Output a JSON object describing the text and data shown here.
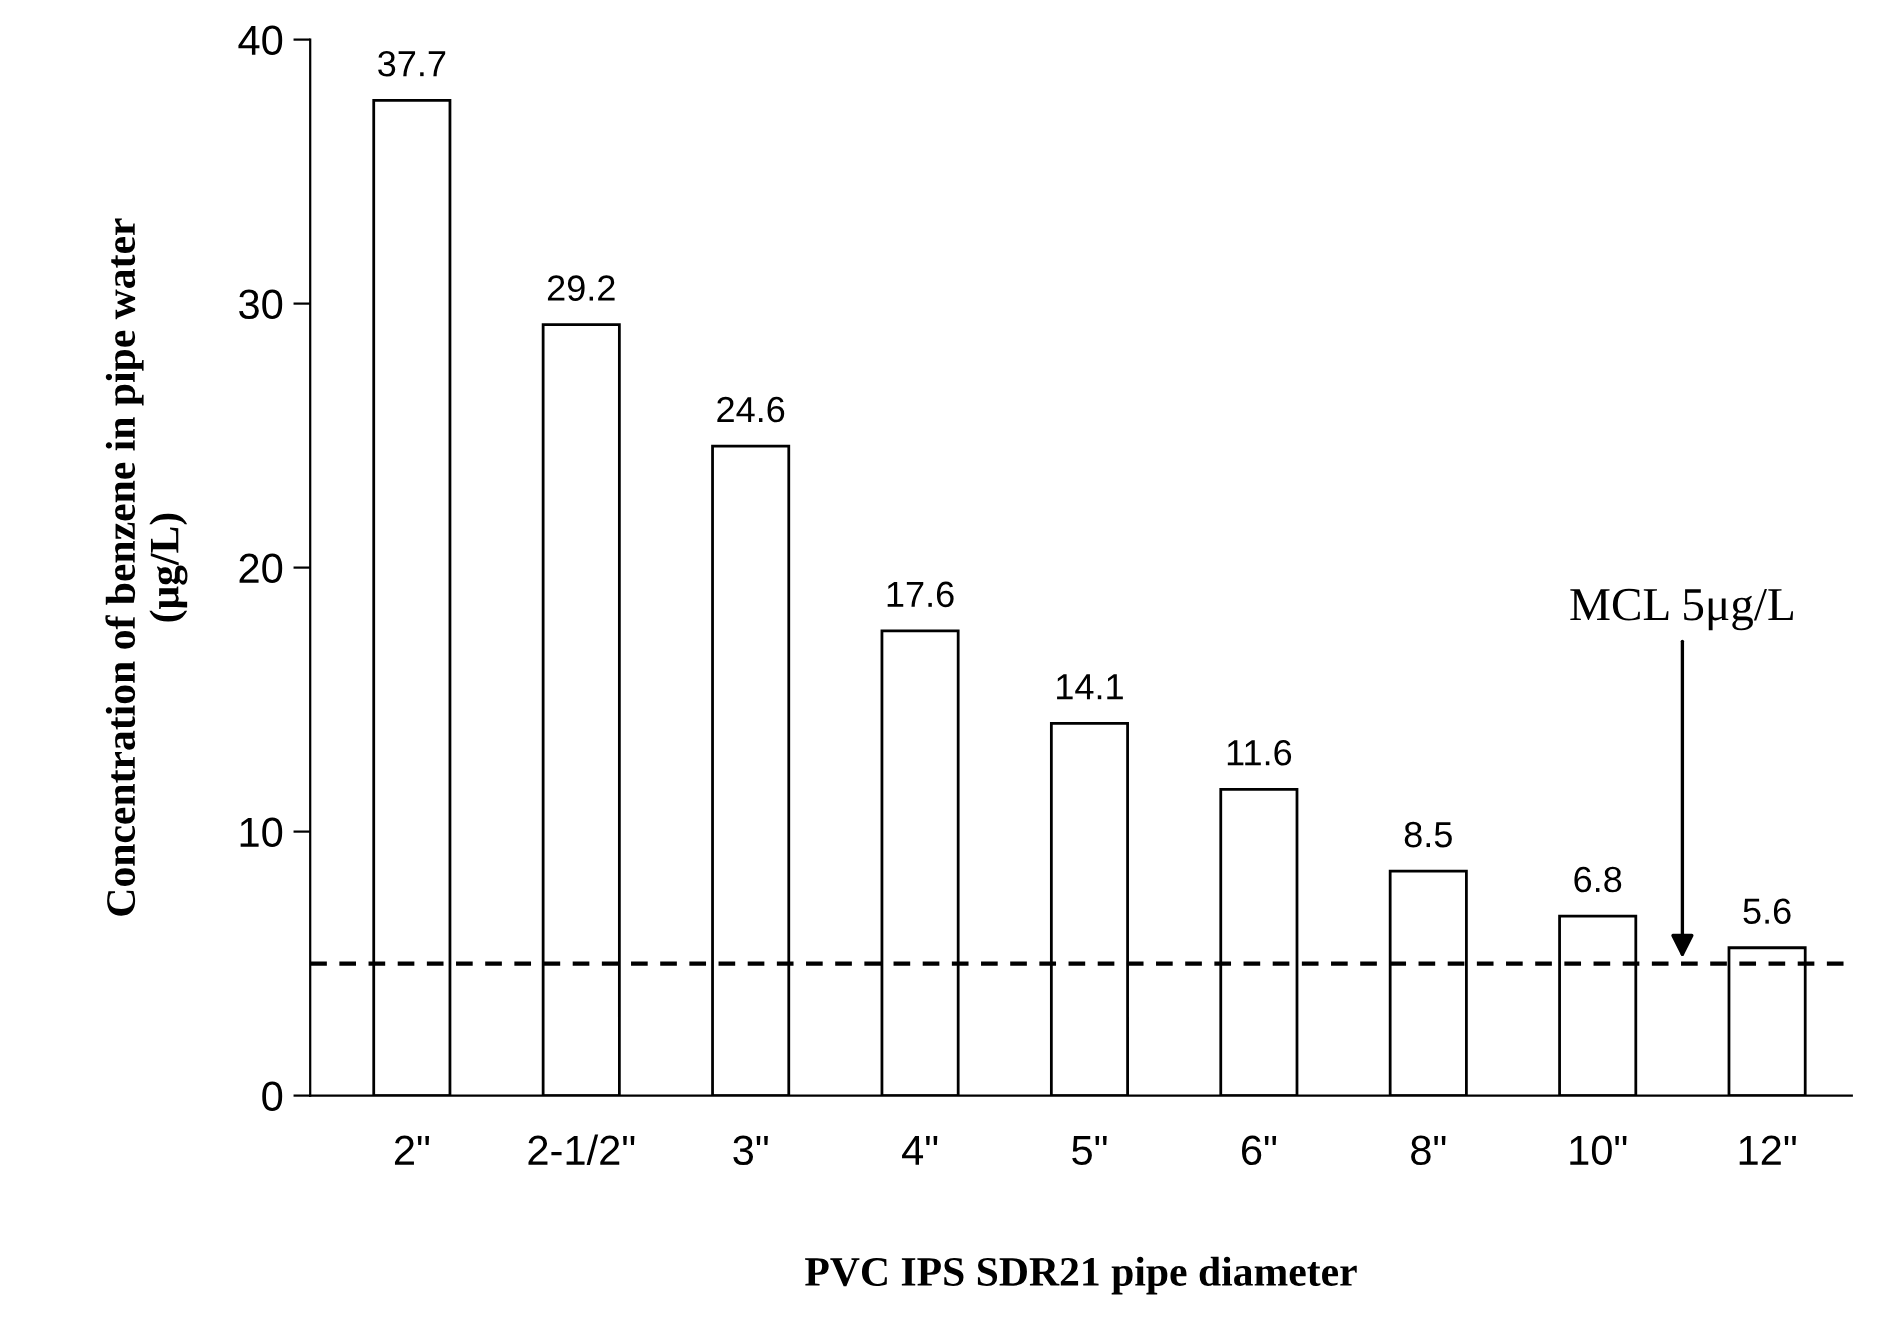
{
  "chart_data": {
    "type": "bar",
    "xlabel": "PVC IPS SDR21 pipe diameter",
    "ylabel": "Concentration of benzene in pipe water\n(μg/L)",
    "categories": [
      "2\"",
      "2-1/2\"",
      "3\"",
      "4\"",
      "5\"",
      "6\"",
      "8\"",
      "10\"",
      "12\""
    ],
    "values": [
      37.7,
      29.2,
      24.6,
      17.6,
      14.1,
      11.6,
      8.5,
      6.8,
      5.6
    ],
    "color": "#ffffff",
    "data_labels": true,
    "ylim": [
      0,
      40
    ],
    "yticks": [
      0,
      10,
      20,
      30,
      40
    ],
    "ref_lines": [
      {
        "axis": "y",
        "value": 5,
        "label": "MCL 5μg/L",
        "color": "#000000",
        "line_style": "dashed"
      }
    ],
    "grid": false,
    "legend": false
  }
}
